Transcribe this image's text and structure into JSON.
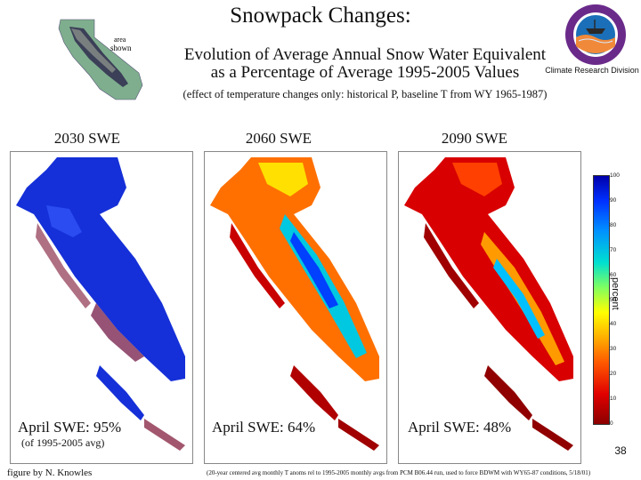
{
  "header": {
    "title": "Snowpack Changes:",
    "subtitle_line1": "Evolution of Average Annual Snow Water Equivalent",
    "subtitle_line2": "as a Percentage of Average 1995-2005 Values",
    "note": "(effect of temperature changes only: historical P, baseline T from WY 1965-1987)"
  },
  "inset_map": {
    "label_line1": "area",
    "label_line2": "shown"
  },
  "logo": {
    "caption": "Climate Research Division"
  },
  "panels": [
    {
      "title": "2030 SWE",
      "stat": "April SWE: 95%",
      "stat_note": "(of 1995-2005 avg)",
      "swe_percent": 95
    },
    {
      "title": "2060 SWE",
      "stat": "April SWE: 64%",
      "stat_note": "",
      "swe_percent": 64
    },
    {
      "title": "2090 SWE",
      "stat": "April SWE: 48%",
      "stat_note": "",
      "swe_percent": 48
    }
  ],
  "colorbar": {
    "label": "percent",
    "ticks": [
      "100",
      "90",
      "80",
      "70",
      "60",
      "50",
      "40",
      "30",
      "20",
      "10",
      "0"
    ],
    "colors": {
      "low": "#8b0000",
      "mid": "#ffff00",
      "high": "#0000aa"
    }
  },
  "footer": {
    "page_number": "38",
    "credit_left": "figure by N. Knowles",
    "credit_right": "(20-year centered avg monthly T anoms rel to 1995-2005 monthly avgs from PCM B06.44 run, used to force BDWM with WY65-87 conditions, 5/18/01)"
  }
}
